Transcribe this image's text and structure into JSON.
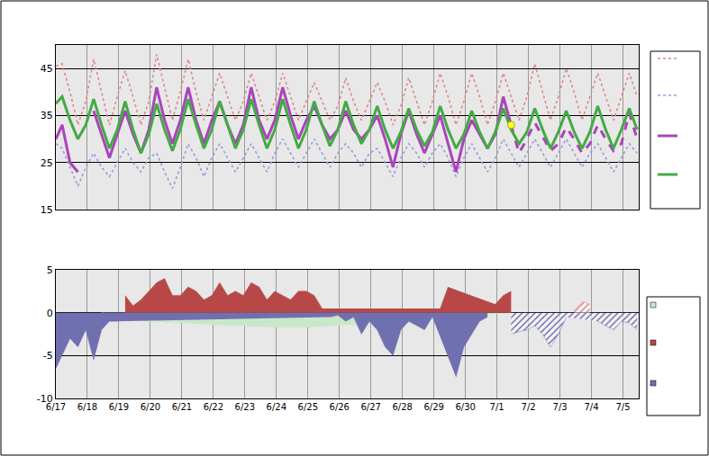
{
  "chart_data": [
    {
      "type": "line",
      "grid": true,
      "tick_labels": "y",
      "xlim": [
        0,
        18.5
      ],
      "xticks": [
        {
          "value": 0,
          "label": "6/17"
        },
        {
          "value": 1,
          "label": "6/18"
        },
        {
          "value": 2,
          "label": "6/19"
        },
        {
          "value": 3,
          "label": "6/20"
        },
        {
          "value": 4,
          "label": "6/21"
        },
        {
          "value": 5,
          "label": "6/22"
        },
        {
          "value": 6,
          "label": "6/23"
        },
        {
          "value": 7,
          "label": "6/24"
        },
        {
          "value": 8,
          "label": "6/25"
        },
        {
          "value": 9,
          "label": "6/26"
        },
        {
          "value": 10,
          "label": "6/27"
        },
        {
          "value": 11,
          "label": "6/28"
        },
        {
          "value": 12,
          "label": "6/29"
        },
        {
          "value": 13,
          "label": "6/30"
        },
        {
          "value": 14,
          "label": "7/1"
        },
        {
          "value": 15,
          "label": "7/2"
        },
        {
          "value": 16,
          "label": "7/3"
        },
        {
          "value": 17,
          "label": "7/4"
        },
        {
          "value": 18,
          "label": "7/5"
        }
      ],
      "ylim": [
        15,
        50
      ],
      "yticks": [
        15,
        25,
        35,
        45
      ],
      "x": [
        0,
        0.2,
        0.45,
        0.7,
        0.95,
        1.2,
        1.45,
        1.7,
        1.95,
        2.2,
        2.45,
        2.7,
        2.95,
        3.2,
        3.45,
        3.7,
        3.95,
        4.2,
        4.45,
        4.7,
        4.95,
        5.2,
        5.45,
        5.7,
        5.95,
        6.2,
        6.45,
        6.7,
        6.95,
        7.2,
        7.45,
        7.7,
        7.95,
        8.2,
        8.45,
        8.7,
        8.95,
        9.2,
        9.45,
        9.7,
        9.95,
        10.2,
        10.45,
        10.7,
        10.95,
        11.2,
        11.45,
        11.7,
        11.95,
        12.2,
        12.45,
        12.7,
        12.95,
        13.2,
        13.45,
        13.7,
        13.95,
        14.2,
        14.45,
        14.7,
        14.95,
        15.2,
        15.45,
        15.7,
        15.95,
        16.2,
        16.45,
        16.7,
        16.95,
        17.2,
        17.45,
        17.7,
        17.95,
        18.2,
        18.45
      ],
      "series": [
        {
          "type": "line",
          "color": "#dd8888",
          "line_style": "dot",
          "values": [
            45.5,
            46,
            40,
            33,
            38,
            47,
            40,
            33,
            39,
            44.5,
            39,
            33,
            38,
            48,
            41,
            34,
            40,
            47,
            40,
            34,
            39,
            44,
            39,
            34,
            38,
            44,
            39,
            34,
            38,
            44,
            39,
            34,
            38,
            42,
            38,
            34,
            37,
            43,
            38,
            34,
            38,
            42,
            38,
            33,
            37,
            43,
            38,
            33,
            38,
            44,
            39,
            33,
            38,
            44,
            39,
            33,
            38,
            44,
            39,
            34,
            39,
            46,
            40,
            34,
            39,
            45,
            40,
            34,
            39,
            44,
            39,
            34,
            39,
            44,
            39
          ]
        },
        {
          "type": "line",
          "color": "#9999dd",
          "line_style": "dot",
          "values": [
            29,
            28,
            24,
            20,
            24,
            27,
            24,
            22,
            25,
            28,
            25,
            23,
            26,
            27,
            23,
            19.5,
            24,
            29,
            26,
            22,
            26,
            29,
            26,
            23,
            26,
            29,
            26,
            23,
            27,
            30,
            27,
            24,
            27,
            30,
            27,
            24,
            27,
            29,
            27,
            24,
            27,
            28,
            25,
            22,
            26,
            29,
            27,
            24,
            27,
            29,
            26,
            22,
            26,
            29,
            26,
            23,
            26,
            30,
            27,
            24,
            27,
            30,
            27,
            24,
            27,
            30,
            27,
            24,
            27,
            29,
            26,
            23,
            26,
            29,
            27
          ]
        },
        {
          "type": "line",
          "color": "#aa44bb",
          "line_style": "solid",
          "values": [
            30,
            33,
            25,
            23,
            null,
            36,
            31,
            26,
            31,
            36,
            31,
            27,
            32,
            41,
            34,
            29,
            34,
            41,
            34,
            29,
            34,
            38,
            33,
            29,
            33,
            41,
            34,
            30,
            34,
            41,
            35,
            30,
            34,
            37,
            33,
            30,
            32,
            36,
            32,
            30,
            32,
            35,
            30,
            24,
            31,
            36,
            31,
            27,
            31,
            35,
            29,
            23,
            30,
            34,
            31,
            28,
            31,
            39,
            33,
            null,
            null,
            null,
            null,
            null,
            null,
            null,
            null,
            null,
            null,
            null,
            null,
            null,
            null,
            null,
            null
          ]
        },
        {
          "type": "line",
          "color": "#aa44bb",
          "line_style": "dash",
          "values": [
            null,
            null,
            null,
            null,
            null,
            null,
            null,
            null,
            null,
            null,
            null,
            null,
            null,
            null,
            null,
            null,
            null,
            null,
            null,
            null,
            null,
            null,
            null,
            null,
            null,
            null,
            null,
            null,
            null,
            null,
            null,
            null,
            null,
            null,
            null,
            null,
            null,
            null,
            null,
            null,
            null,
            null,
            null,
            null,
            null,
            null,
            null,
            null,
            null,
            null,
            null,
            null,
            null,
            null,
            null,
            null,
            null,
            null,
            33,
            27,
            30,
            33.5,
            30.5,
            27.5,
            29,
            32.5,
            30,
            27,
            29,
            33,
            30,
            27.5,
            29,
            35.5,
            30
          ]
        },
        {
          "type": "line",
          "color": "#44aa44",
          "line_style": "solid",
          "values": [
            37.5,
            39,
            34,
            30,
            33,
            38.5,
            33,
            28,
            32,
            38,
            32,
            27,
            31,
            37.5,
            32,
            27.5,
            32,
            38.5,
            33,
            28,
            32,
            38,
            33,
            28,
            32,
            38.5,
            33,
            28,
            32,
            38.5,
            33,
            28,
            32,
            38,
            33,
            28.5,
            32,
            38,
            33,
            29,
            32,
            37,
            32,
            28,
            31.5,
            36.5,
            32,
            28.5,
            31.5,
            37,
            32,
            28,
            31,
            36,
            31.5,
            28,
            31.5,
            36.5,
            32,
            29,
            31.5,
            36.5,
            32,
            28,
            31.5,
            36,
            31.5,
            28,
            31.5,
            37,
            32,
            28,
            32,
            36.5,
            32
          ]
        },
        {
          "type": "scatter",
          "color": "#ffff33",
          "marker": "circle",
          "x": [
            14.45
          ],
          "values": [
            33
          ]
        }
      ]
    },
    {
      "type": "area",
      "grid": true,
      "xlim": [
        0,
        18.5
      ],
      "xticks": [
        {
          "value": 0,
          "label": "6/17"
        },
        {
          "value": 1,
          "label": "6/18"
        },
        {
          "value": 2,
          "label": "6/19"
        },
        {
          "value": 3,
          "label": "6/20"
        },
        {
          "value": 4,
          "label": "6/21"
        },
        {
          "value": 5,
          "label": "6/22"
        },
        {
          "value": 6,
          "label": "6/23"
        },
        {
          "value": 7,
          "label": "6/24"
        },
        {
          "value": 8,
          "label": "6/25"
        },
        {
          "value": 9,
          "label": "6/26"
        },
        {
          "value": 10,
          "label": "6/27"
        },
        {
          "value": 11,
          "label": "6/28"
        },
        {
          "value": 12,
          "label": "6/29"
        },
        {
          "value": 13,
          "label": "6/30"
        },
        {
          "value": 14,
          "label": "7/1"
        },
        {
          "value": 15,
          "label": "7/2"
        },
        {
          "value": 16,
          "label": "7/3"
        },
        {
          "value": 17,
          "label": "7/4"
        },
        {
          "value": 18,
          "label": "7/5"
        }
      ],
      "ylim": [
        -10,
        5
      ],
      "yticks": [
        -10,
        -5,
        0,
        5
      ],
      "x": [
        0,
        0.2,
        0.45,
        0.7,
        0.95,
        1.2,
        1.45,
        1.7,
        1.95,
        2.2,
        2.45,
        2.7,
        2.95,
        3.2,
        3.45,
        3.7,
        3.95,
        4.2,
        4.45,
        4.7,
        4.95,
        5.2,
        5.45,
        5.7,
        5.95,
        6.2,
        6.45,
        6.7,
        6.95,
        7.2,
        7.45,
        7.7,
        7.95,
        8.2,
        8.45,
        8.7,
        8.95,
        9.2,
        9.45,
        9.7,
        9.95,
        10.2,
        10.45,
        10.7,
        10.95,
        11.2,
        11.45,
        11.7,
        11.95,
        12.2,
        12.45,
        12.7,
        12.95,
        13.2,
        13.45,
        13.7,
        13.95,
        14.2,
        14.45,
        14.7,
        14.95,
        15.2,
        15.45,
        15.7,
        15.95,
        16.2,
        16.45,
        16.7,
        16.95,
        17.2,
        17.45,
        17.7,
        17.95,
        18.2,
        18.45
      ],
      "series": [
        {
          "type": "area",
          "color": "#c8e8c8",
          "values": [
            null,
            null,
            null,
            null,
            null,
            null,
            0,
            -0.3,
            -0.5,
            -0.7,
            -0.8,
            -0.9,
            -1.0,
            -1.0,
            -1.1,
            -1.1,
            -1.2,
            -1.2,
            -1.3,
            -1.3,
            -1.4,
            -1.4,
            -1.5,
            -1.5,
            -1.5,
            -1.6,
            -1.6,
            -1.6,
            -1.7,
            -1.7,
            -1.7,
            -1.7,
            -1.7,
            -1.6,
            -1.6,
            -1.5,
            -1.5,
            -1.4,
            -1.4,
            -1.3,
            -1.3,
            -1.3,
            -1.2,
            -1.2,
            -1.1,
            -1.1,
            -1.0,
            -0.9,
            -0.8,
            -0.7,
            -0.6,
            -0.5,
            -0.4,
            -0.3,
            -0.2,
            -0.2,
            -0.1,
            -0.1,
            0,
            null,
            null,
            null,
            null,
            null,
            null,
            null,
            null,
            null,
            null,
            null,
            null,
            null,
            null,
            null,
            null
          ]
        },
        {
          "type": "area",
          "color": "#b84848",
          "values": [
            null,
            null,
            null,
            null,
            null,
            null,
            null,
            null,
            null,
            2,
            0.8,
            1.5,
            2.5,
            3.5,
            4,
            2,
            2,
            3,
            2.5,
            1.5,
            2,
            3.5,
            2,
            2.5,
            2,
            3.5,
            3,
            1.5,
            2.5,
            2,
            1.5,
            2.5,
            2.5,
            2,
            0.5,
            null,
            null,
            null,
            null,
            null,
            null,
            null,
            null,
            null,
            null,
            null,
            null,
            null,
            null,
            0.5,
            3,
            null,
            null,
            null,
            null,
            null,
            1,
            2,
            2.5,
            null,
            null,
            null,
            null,
            null,
            null,
            null,
            null,
            null,
            null,
            null,
            null,
            null,
            null,
            null,
            null
          ]
        },
        {
          "type": "area",
          "color": "#7070b0",
          "values": [
            -6.5,
            -5,
            -3,
            -4,
            -2,
            -5.5,
            -2,
            -1,
            -1,
            null,
            null,
            null,
            null,
            null,
            null,
            null,
            null,
            null,
            null,
            null,
            null,
            null,
            null,
            null,
            null,
            null,
            null,
            null,
            null,
            null,
            null,
            null,
            null,
            null,
            null,
            -0.5,
            -0.3,
            -1,
            -0.5,
            -2.5,
            -1,
            -2,
            -4,
            -5,
            -2,
            -1,
            -1.5,
            -2,
            -0.5,
            null,
            null,
            -7.5,
            -4,
            -2.5,
            -1,
            -0.5,
            null,
            null,
            null,
            null,
            null,
            null,
            null,
            null,
            null,
            null,
            null,
            null,
            null,
            null,
            null,
            null,
            null,
            null,
            null
          ]
        },
        {
          "type": "area",
          "color": "#7070b0",
          "line_style": "hatched",
          "values": [
            null,
            null,
            null,
            null,
            null,
            null,
            null,
            null,
            null,
            null,
            null,
            null,
            null,
            null,
            null,
            null,
            null,
            null,
            null,
            null,
            null,
            null,
            null,
            null,
            null,
            null,
            null,
            null,
            null,
            null,
            null,
            null,
            null,
            null,
            null,
            null,
            null,
            null,
            null,
            null,
            null,
            null,
            null,
            null,
            null,
            null,
            null,
            null,
            null,
            null,
            null,
            null,
            null,
            null,
            null,
            null,
            null,
            null,
            -2.5,
            -2.2,
            -2,
            -1.5,
            -2.5,
            -4,
            -2.5,
            -0.5,
            null,
            null,
            null,
            -1,
            -1.5,
            -2,
            -1,
            -1.2,
            -2
          ]
        },
        {
          "type": "area",
          "color": "#dd8888",
          "line_style": "hatched",
          "values": [
            null,
            null,
            null,
            null,
            null,
            null,
            null,
            null,
            null,
            null,
            null,
            null,
            null,
            null,
            null,
            null,
            null,
            null,
            null,
            null,
            null,
            null,
            null,
            null,
            null,
            null,
            null,
            null,
            null,
            null,
            null,
            null,
            null,
            null,
            null,
            null,
            null,
            null,
            null,
            null,
            null,
            null,
            null,
            null,
            null,
            null,
            null,
            null,
            null,
            null,
            null,
            null,
            null,
            null,
            null,
            null,
            null,
            null,
            null,
            null,
            null,
            null,
            null,
            null,
            null,
            null,
            0.2,
            1.3,
            1.0,
            null,
            null,
            null,
            null,
            null,
            null
          ]
        }
      ]
    }
  ]
}
